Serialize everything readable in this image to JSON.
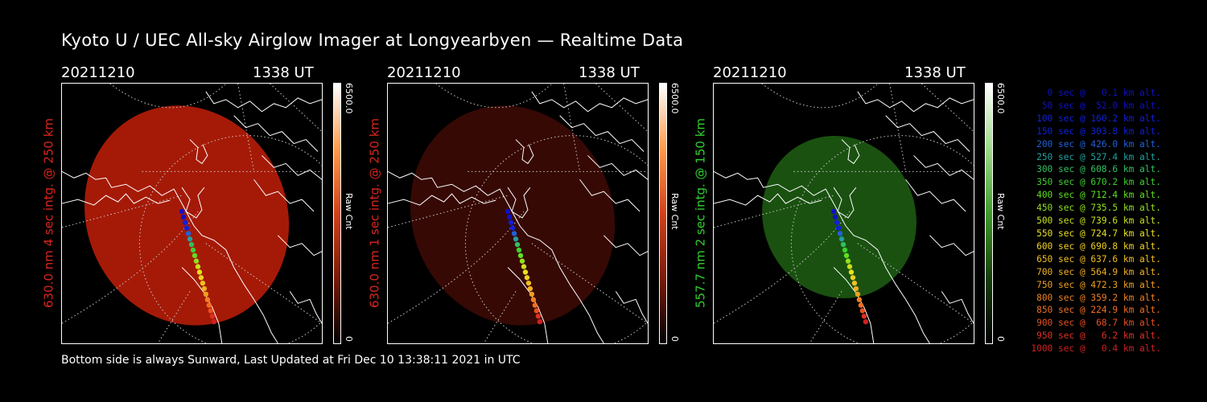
{
  "title": "Kyoto U / UEC All-sky Airglow Imager at Longyearbyen — Realtime Data",
  "panels": [
    {
      "date": "20211210",
      "time": "1338 UT",
      "side_label": "630.0 nm  4 sec intg. @ 250 km",
      "label_color": "#d9251c",
      "colorbar_max": "6500.0",
      "colorbar_min": "0",
      "colorbar_unit": "Raw Cnt",
      "colormap": [
        "#ffffff",
        "#ff9a4a",
        "#d2401a",
        "#7a1a08",
        "#000000"
      ],
      "glow_color": "#c21f08",
      "glow_opacity": 0.85
    },
    {
      "date": "20211210",
      "time": "1338 UT",
      "side_label": "630.0 nm  1 sec intg. @ 250 km",
      "label_color": "#d9251c",
      "colorbar_max": "6500.0",
      "colorbar_min": "0",
      "colorbar_unit": "Raw Cnt",
      "colormap": [
        "#ffffff",
        "#ff9a4a",
        "#d2401a",
        "#7a1a08",
        "#000000"
      ],
      "glow_color": "#3a0904",
      "glow_opacity": 0.95
    },
    {
      "date": "20211210",
      "time": "1338 UT",
      "side_label": "557.7 nm  2 sec intg. @ 150 km",
      "label_color": "#2fcf2f",
      "colorbar_max": "6500.0",
      "colorbar_min": "0",
      "colorbar_unit": "Raw Cnt",
      "colormap": [
        "#ffffff",
        "#9dd88a",
        "#3f9a2a",
        "#163f0b",
        "#000000"
      ],
      "glow_color": "#1d5a12",
      "glow_opacity": 0.9
    }
  ],
  "footer": "Bottom side is always Sunward, Last Updated at Fri Dec 10 13:38:11 2021 in UTC",
  "legend": [
    {
      "text": "   0 sec @   0.1 km alt.",
      "color": "#1010c8"
    },
    {
      "text": "  50 sec @  52.0 km alt.",
      "color": "#1010c8"
    },
    {
      "text": " 100 sec @ 160.2 km alt.",
      "color": "#1020d8"
    },
    {
      "text": " 150 sec @ 303.8 km alt.",
      "color": "#1020d8"
    },
    {
      "text": " 200 sec @ 426.0 km alt.",
      "color": "#2060d8"
    },
    {
      "text": " 250 sec @ 527.4 km alt.",
      "color": "#20a0a0"
    },
    {
      "text": " 300 sec @ 608.6 km alt.",
      "color": "#30c060"
    },
    {
      "text": " 350 sec @ 670.2 km alt.",
      "color": "#40d030"
    },
    {
      "text": " 400 sec @ 712.4 km alt.",
      "color": "#60e020"
    },
    {
      "text": " 450 sec @ 735.5 km alt.",
      "color": "#90e020"
    },
    {
      "text": " 500 sec @ 739.6 km alt.",
      "color": "#c8e020"
    },
    {
      "text": " 550 sec @ 724.7 km alt.",
      "color": "#e8e020"
    },
    {
      "text": " 600 sec @ 690.8 km alt.",
      "color": "#f0d020"
    },
    {
      "text": " 650 sec @ 637.6 km alt.",
      "color": "#f0c020"
    },
    {
      "text": " 700 sec @ 564.9 km alt.",
      "color": "#f0b020"
    },
    {
      "text": " 750 sec @ 472.3 km alt.",
      "color": "#f0a020"
    },
    {
      "text": " 800 sec @ 359.2 km alt.",
      "color": "#f08020"
    },
    {
      "text": " 850 sec @ 224.9 km alt.",
      "color": "#f07020"
    },
    {
      "text": " 900 sec @  68.7 km alt.",
      "color": "#e85020"
    },
    {
      "text": " 950 sec @   6.2 km alt.",
      "color": "#e03020"
    },
    {
      "text": "1000 sec @   0.4 km alt.",
      "color": "#d02020"
    }
  ]
}
